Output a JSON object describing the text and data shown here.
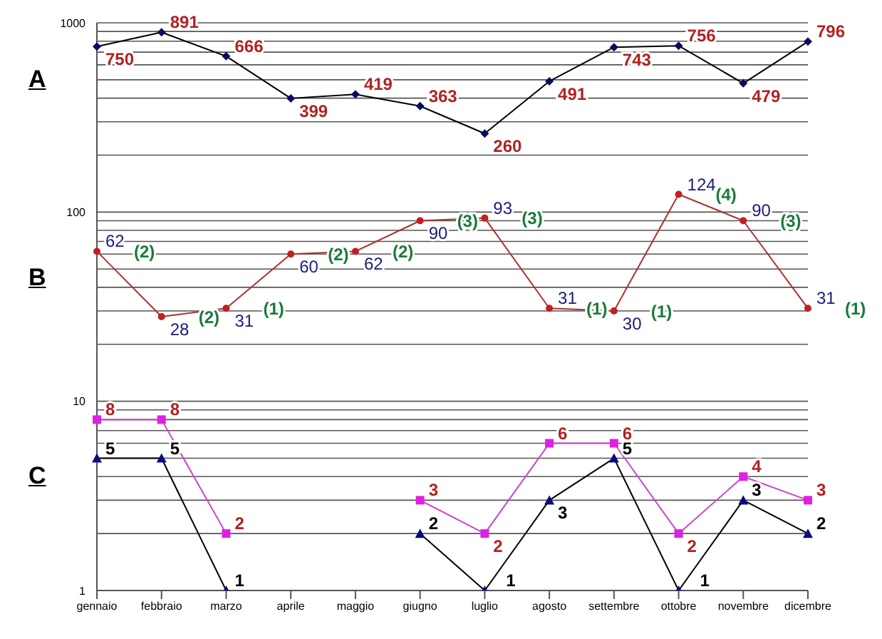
{
  "chart_data": {
    "type": "line",
    "categories": [
      "gennaio",
      "febbraio",
      "marzo",
      "aprile",
      "maggio",
      "giugno",
      "luglio",
      "agosto",
      "settembre",
      "ottobre",
      "novembre",
      "dicembre"
    ],
    "series": [
      {
        "color": "#000000",
        "marker": "diamond",
        "values": [
          750,
          891,
          666,
          399,
          419,
          363,
          260,
          491,
          743,
          756,
          479,
          796
        ]
      },
      {
        "color": "#b03030",
        "marker": "circle",
        "values": [
          62,
          28,
          31,
          60,
          62,
          90,
          93,
          31,
          30,
          124,
          90,
          31
        ]
      },
      {
        "color": "#cc44cc",
        "marker": "square",
        "values": [
          8,
          8,
          2,
          null,
          null,
          3,
          2,
          6,
          6,
          2,
          4,
          3
        ]
      },
      {
        "color": "#000000",
        "marker": "triangle",
        "values": [
          5,
          5,
          1,
          null,
          null,
          2,
          1,
          3,
          5,
          1,
          3,
          2
        ]
      }
    ],
    "log": true,
    "ylim": [
      1,
      1000
    ],
    "yticks": [
      1,
      {
        "value": 2,
        "label": null
      },
      {
        "value": 3,
        "label": null
      },
      {
        "value": 4,
        "label": null
      },
      {
        "value": 5,
        "label": null
      },
      {
        "value": 6,
        "label": null
      },
      {
        "value": 7,
        "label": null
      },
      {
        "value": 8,
        "label": null
      },
      {
        "value": 9,
        "label": null
      },
      10,
      {
        "value": 20,
        "label": null
      },
      {
        "value": 30,
        "label": null
      },
      {
        "value": 40,
        "label": null
      },
      {
        "value": 50,
        "label": null
      },
      {
        "value": 60,
        "label": null
      },
      {
        "value": 70,
        "label": null
      },
      {
        "value": 80,
        "label": null
      },
      {
        "value": 90,
        "label": null
      },
      100,
      {
        "value": 200,
        "label": null
      },
      {
        "value": 300,
        "label": null
      },
      {
        "value": 400,
        "label": null
      },
      {
        "value": 500,
        "label": null
      },
      {
        "value": 600,
        "label": null
      },
      {
        "value": 700,
        "label": null
      },
      {
        "value": 800,
        "label": null
      },
      {
        "value": 900,
        "label": null
      },
      1000
    ],
    "grid": "y",
    "data_labels": true,
    "annotations": [
      "A",
      "B",
      "C",
      {
        "text": "(2)",
        "x": "gennaio",
        "y": 62
      },
      {
        "text": "(2)",
        "x": "febbraio",
        "y": 28
      },
      {
        "text": "(1)",
        "x": "marzo",
        "y": 31
      },
      {
        "text": "(2)",
        "x": "aprile",
        "y": 60
      },
      {
        "text": "(2)",
        "x": "maggio",
        "y": 62
      },
      {
        "text": "(3)",
        "x": "giugno",
        "y": 90
      },
      {
        "text": "(3)",
        "x": "luglio",
        "y": 93
      },
      {
        "text": "(1)",
        "x": "agosto",
        "y": 31
      },
      {
        "text": "(1)",
        "x": "settembre",
        "y": 30
      },
      {
        "text": "(4)",
        "x": "ottobre",
        "y": 124
      },
      {
        "text": "(3)",
        "x": "novembre",
        "y": 90
      },
      {
        "text": "(1)",
        "x": "dicembre",
        "y": 31
      }
    ]
  }
}
